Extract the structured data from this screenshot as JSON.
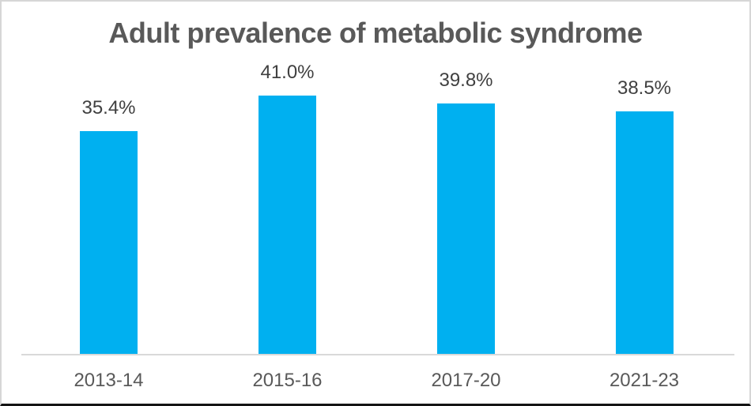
{
  "chart_data": {
    "type": "bar",
    "title": "Adult prevalence of metabolic syndrome",
    "categories": [
      "2013-14",
      "2015-16",
      "2017-20",
      "2021-23"
    ],
    "values": [
      35.4,
      41.0,
      39.8,
      38.5
    ],
    "data_labels": [
      "35.4%",
      "41.0%",
      "39.8%",
      "38.5%"
    ],
    "xlabel": "",
    "ylabel": "",
    "ylim": [
      0,
      45
    ],
    "grid": false,
    "legend": "none",
    "data_labels_position": "above-bars",
    "value_axis_visible": false
  },
  "colors": {
    "bar": "#00b0f0",
    "title_text": "#595959",
    "data_label_text": "#404040",
    "axis_label_text": "#595959",
    "axis_line": "#d9d9d9",
    "frame_border": "#d6d6d6",
    "frame_bottom_edge": "#141414",
    "background": "#ffffff"
  }
}
